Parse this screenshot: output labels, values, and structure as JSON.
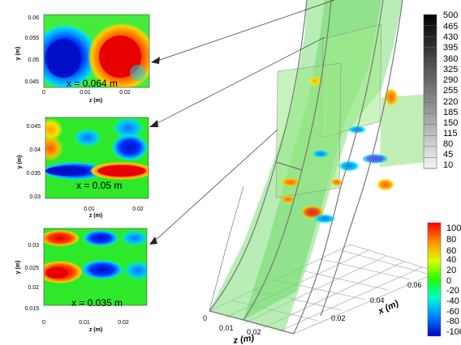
{
  "panels": [
    {
      "id": "top",
      "label": "x = 0.064 m",
      "ylabel": "y (m)",
      "xlabel": "z (m)",
      "yticks": [
        "0.06",
        "0.055",
        "0.05",
        "0.045"
      ],
      "xticks": [
        "0",
        "0.01",
        "0.02"
      ]
    },
    {
      "id": "middle",
      "label": "x = 0.05 m",
      "ylabel": "y (m)",
      "xlabel": "z (m)",
      "yticks": [
        "0.045",
        "0.04",
        "0.035",
        "0.03"
      ],
      "xticks": [
        "0.01",
        "0.02"
      ]
    },
    {
      "id": "bottom",
      "label": "x = 0.035 m",
      "ylabel": "y (m)",
      "xlabel": "z (m)",
      "yticks": [
        "0.03",
        "0.025",
        "0.02",
        "0.015"
      ],
      "xticks": [
        "0",
        "0.01",
        "0.02"
      ]
    }
  ],
  "grayscale_colorbar": {
    "labels": [
      "500",
      "465",
      "430",
      "395",
      "360",
      "325",
      "290",
      "255",
      "220",
      "185",
      "150",
      "115",
      "80",
      "45",
      "10"
    ]
  },
  "color_colorbar": {
    "labels": [
      "100",
      "80",
      "60",
      "40",
      "20",
      "0",
      "-20",
      "-40",
      "-60",
      "-80",
      "-100"
    ]
  },
  "axes_3d": {
    "z_ticks": [
      "0",
      "0.01",
      "0.02"
    ],
    "z_label": "z (m)",
    "x_ticks": [
      "0.02",
      "0.04",
      "0.06"
    ],
    "x_label": "x (m)"
  }
}
